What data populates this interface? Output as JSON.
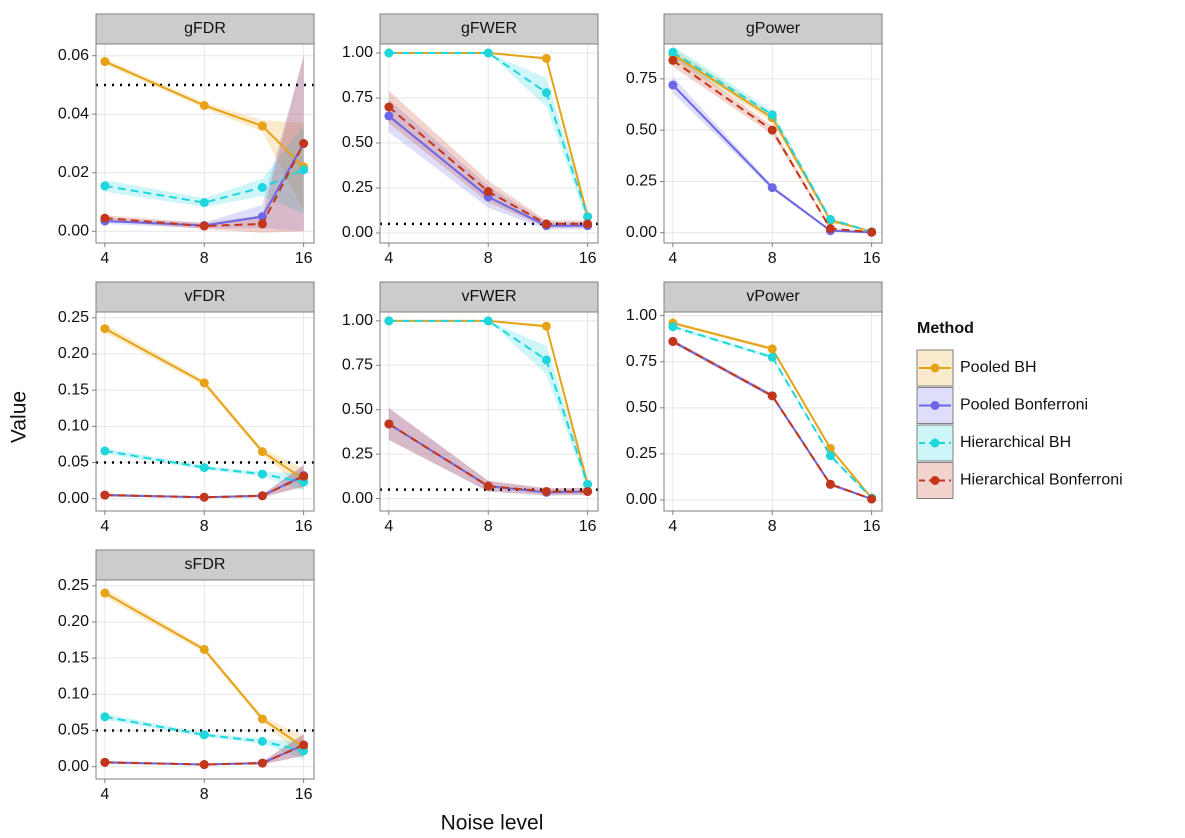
{
  "chart_data": [
    {
      "type": "line",
      "title": "gFDR",
      "x": [
        4,
        8,
        12,
        16
      ],
      "xscale": "log",
      "xlim": [
        3.76,
        17.2
      ],
      "xticks": [
        4,
        8,
        16
      ],
      "ylim": [
        -0.004,
        0.064
      ],
      "yticks": [
        {
          "value": 0,
          "label": "0.00"
        },
        0.02,
        0.04,
        0.06
      ],
      "hline": 0.05,
      "grid": true,
      "series": [
        {
          "values": [
            0.058,
            0.043,
            0.036,
            0.022
          ],
          "error": [
            0.001,
            0.001,
            0.002,
            0.015
          ]
        },
        {
          "values": [
            0.0035,
            0.002,
            0.005,
            0.03
          ],
          "error": [
            0.001,
            0.001,
            0.004,
            0.03
          ]
        },
        {
          "values": [
            0.0155,
            0.0098,
            0.015,
            0.021
          ],
          "error": [
            0.002,
            0.0015,
            0.003,
            0.015
          ]
        },
        {
          "values": [
            0.0045,
            0.0018,
            0.0025,
            0.03
          ],
          "error": [
            0.001,
            0.001,
            0.003,
            0.03
          ]
        }
      ]
    },
    {
      "type": "line",
      "title": "gFWER",
      "x": [
        4,
        8,
        12,
        16
      ],
      "xscale": "log",
      "xlim": [
        3.76,
        17.2
      ],
      "xticks": [
        4,
        8,
        16
      ],
      "ylim": [
        -0.056,
        1.05
      ],
      "yticks": [
        {
          "value": 0,
          "label": "0.00"
        },
        0.25,
        {
          "value": 0.5,
          "label": "0.50"
        },
        0.75,
        {
          "value": 1,
          "label": "1.00"
        }
      ],
      "hline": 0.05,
      "grid": true,
      "series": [
        {
          "values": [
            1,
            1,
            0.97,
            0.09
          ],
          "error": [
            0,
            0,
            0.01,
            0.03
          ]
        },
        {
          "values": [
            0.65,
            0.2,
            0.04,
            0.04
          ],
          "error": [
            0.09,
            0.06,
            0.02,
            0.02
          ]
        },
        {
          "values": [
            1,
            1,
            0.78,
            0.09
          ],
          "error": [
            0,
            0,
            0.08,
            0.03
          ]
        },
        {
          "values": [
            0.7,
            0.23,
            0.05,
            0.05
          ],
          "error": [
            0.09,
            0.06,
            0.02,
            0.02
          ]
        }
      ]
    },
    {
      "type": "line",
      "title": "gPower",
      "x": [
        4,
        8,
        12,
        16
      ],
      "xscale": "log",
      "xlim": [
        3.76,
        17.2
      ],
      "xticks": [
        4,
        8,
        16
      ],
      "ylim": [
        -0.05,
        0.92
      ],
      "yticks": [
        {
          "value": 0,
          "label": "0.00"
        },
        0.25,
        {
          "value": 0.5,
          "label": "0.50"
        },
        0.75
      ],
      "grid": true,
      "series": [
        {
          "values": [
            0.87,
            0.56,
            0.06,
            0.005
          ],
          "error": [
            0.03,
            0.02,
            0.01,
            0.002
          ]
        },
        {
          "values": [
            0.72,
            0.22,
            0.01,
            0.002
          ],
          "error": [
            0.04,
            0.01,
            0.005,
            0.001
          ]
        },
        {
          "values": [
            0.88,
            0.575,
            0.065,
            0.005
          ],
          "error": [
            0.03,
            0.02,
            0.01,
            0.002
          ]
        },
        {
          "values": [
            0.84,
            0.5,
            0.02,
            0.003
          ],
          "error": [
            0.03,
            0.02,
            0.005,
            0.001
          ]
        }
      ]
    },
    {
      "type": "line",
      "title": "vFDR",
      "x": [
        4,
        8,
        12,
        16
      ],
      "xscale": "log",
      "xlim": [
        3.76,
        17.2
      ],
      "xticks": [
        4,
        8,
        16
      ],
      "ylim": [
        -0.017,
        0.258
      ],
      "yticks": [
        {
          "value": 0,
          "label": "0.00"
        },
        0.05,
        {
          "value": 0.1,
          "label": "0.10"
        },
        0.15,
        {
          "value": 0.2,
          "label": "0.20"
        },
        0.25
      ],
      "hline": 0.05,
      "grid": true,
      "series": [
        {
          "values": [
            0.235,
            0.16,
            0.065,
            0.027
          ],
          "error": [
            0.006,
            0.004,
            0.004,
            0.015
          ]
        },
        {
          "values": [
            0.005,
            0.002,
            0.004,
            0.032
          ],
          "error": [
            0.002,
            0.001,
            0.002,
            0.015
          ]
        },
        {
          "values": [
            0.066,
            0.043,
            0.034,
            0.023
          ],
          "error": [
            0.004,
            0.003,
            0.003,
            0.012
          ]
        },
        {
          "values": [
            0.005,
            0.002,
            0.004,
            0.031
          ],
          "error": [
            0.002,
            0.001,
            0.002,
            0.015
          ]
        }
      ]
    },
    {
      "type": "line",
      "title": "vFWER",
      "x": [
        4,
        8,
        12,
        16
      ],
      "xscale": "log",
      "xlim": [
        3.76,
        17.2
      ],
      "xticks": [
        4,
        8,
        16
      ],
      "ylim": [
        -0.07,
        1.05
      ],
      "yticks": [
        {
          "value": 0,
          "label": "0.00"
        },
        0.25,
        {
          "value": 0.5,
          "label": "0.50"
        },
        0.75,
        {
          "value": 1,
          "label": "1.00"
        }
      ],
      "hline": 0.05,
      "grid": true,
      "series": [
        {
          "values": [
            1,
            1,
            0.97,
            0.08
          ],
          "error": [
            0,
            0,
            0.01,
            0.03
          ]
        },
        {
          "values": [
            0.42,
            0.07,
            0.035,
            0.04
          ],
          "error": [
            0.09,
            0.03,
            0.02,
            0.02
          ]
        },
        {
          "values": [
            1,
            1,
            0.78,
            0.08
          ],
          "error": [
            0,
            0,
            0.08,
            0.03
          ]
        },
        {
          "values": [
            0.42,
            0.07,
            0.04,
            0.04
          ],
          "error": [
            0.09,
            0.03,
            0.02,
            0.02
          ]
        }
      ]
    },
    {
      "type": "line",
      "title": "vPower",
      "x": [
        4,
        8,
        12,
        16
      ],
      "xscale": "log",
      "xlim": [
        3.76,
        17.2
      ],
      "xticks": [
        4,
        8,
        16
      ],
      "ylim": [
        -0.06,
        1.02
      ],
      "yticks": [
        {
          "value": 0,
          "label": "0.00"
        },
        0.25,
        {
          "value": 0.5,
          "label": "0.50"
        },
        0.75,
        {
          "value": 1,
          "label": "1.00"
        }
      ],
      "grid": true,
      "series": [
        {
          "values": [
            0.96,
            0.82,
            0.28,
            0.01
          ],
          "error": [
            0.01,
            0.01,
            0.01,
            0.005
          ]
        },
        {
          "values": [
            0.86,
            0.565,
            0.085,
            0.005
          ],
          "error": [
            0.01,
            0.01,
            0.01,
            0.003
          ]
        },
        {
          "values": [
            0.94,
            0.775,
            0.24,
            0.01
          ],
          "error": [
            0.01,
            0.01,
            0.01,
            0.005
          ]
        },
        {
          "values": [
            0.86,
            0.565,
            0.085,
            0.005
          ],
          "error": [
            0.01,
            0.01,
            0.01,
            0.003
          ]
        }
      ]
    },
    {
      "type": "line",
      "title": "sFDR",
      "x": [
        4,
        8,
        12,
        16
      ],
      "xscale": "log",
      "xlim": [
        3.76,
        17.2
      ],
      "xticks": [
        4,
        8,
        16
      ],
      "ylim": [
        -0.017,
        0.258
      ],
      "yticks": [
        {
          "value": 0,
          "label": "0.00"
        },
        0.05,
        {
          "value": 0.1,
          "label": "0.10"
        },
        0.15,
        {
          "value": 0.2,
          "label": "0.20"
        },
        0.25
      ],
      "hline": 0.05,
      "grid": true,
      "series": [
        {
          "values": [
            0.24,
            0.162,
            0.066,
            0.027
          ],
          "error": [
            0.006,
            0.004,
            0.004,
            0.015
          ]
        },
        {
          "values": [
            0.006,
            0.003,
            0.005,
            0.03
          ],
          "error": [
            0.002,
            0.001,
            0.002,
            0.015
          ]
        },
        {
          "values": [
            0.069,
            0.044,
            0.035,
            0.022
          ],
          "error": [
            0.004,
            0.003,
            0.003,
            0.012
          ]
        },
        {
          "values": [
            0.006,
            0.003,
            0.005,
            0.03
          ],
          "error": [
            0.002,
            0.001,
            0.002,
            0.015
          ]
        }
      ]
    }
  ],
  "legend": {
    "title": "Method",
    "items": [
      {
        "name": "Pooled BH",
        "color": "#e6a317",
        "dashed": false
      },
      {
        "name": "Pooled Bonferroni",
        "color": "#6b67e6",
        "dashed": false
      },
      {
        "name": "Hierarchical BH",
        "color": "#1fd6dd",
        "dashed": true
      },
      {
        "name": "Hierarchical Bonferroni",
        "color": "#c4361a",
        "dashed": true
      }
    ]
  },
  "xlabel": "Noise level",
  "ylabel": "Value"
}
